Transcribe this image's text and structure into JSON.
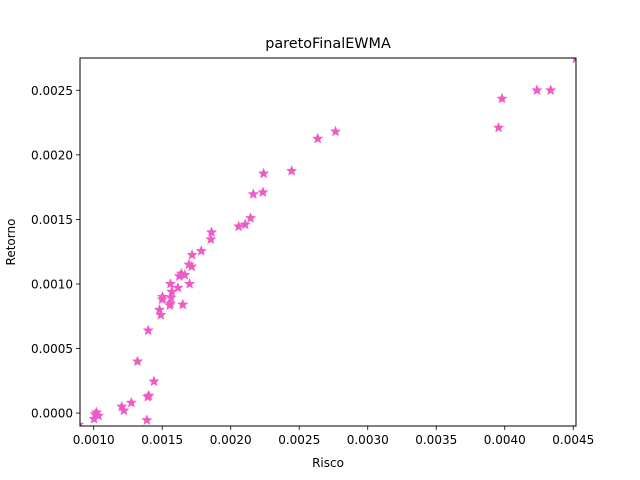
{
  "chart_data": {
    "type": "scatter",
    "title": "paretoFinalEWMA",
    "xlabel": "Risco",
    "ylabel": "Retorno",
    "xlim": [
      0.0009,
      0.00452
    ],
    "ylim": [
      -0.0001,
      0.00275
    ],
    "xticks": [
      {
        "value": 0.001,
        "label": "0.0010"
      },
      {
        "value": 0.0015,
        "label": "0.0015"
      },
      {
        "value": 0.002,
        "label": "0.0020"
      },
      {
        "value": 0.0025,
        "label": "0.0025"
      },
      {
        "value": 0.003,
        "label": "0.0030"
      },
      {
        "value": 0.0035,
        "label": "0.0035"
      },
      {
        "value": 0.004,
        "label": "0.0040"
      },
      {
        "value": 0.0045,
        "label": "0.0045"
      }
    ],
    "yticks": [
      {
        "value": 0.0,
        "label": "0.0000"
      },
      {
        "value": 0.0005,
        "label": "0.0005"
      },
      {
        "value": 0.001,
        "label": "0.0010"
      },
      {
        "value": 0.0015,
        "label": "0.0015"
      },
      {
        "value": 0.002,
        "label": "0.0020"
      },
      {
        "value": 0.0025,
        "label": "0.0025"
      }
    ],
    "marker": "star",
    "color": "#ef5bc6",
    "grid": false,
    "legend": "none",
    "points": [
      {
        "x": 0.00089,
        "y": -9e-05
      },
      {
        "x": 0.001003,
        "y": -4.5e-05
      },
      {
        "x": 0.00101,
        "y": -1e-05
      },
      {
        "x": 0.00102,
        "y": 5e-06
      },
      {
        "x": 0.001035,
        "y": -2e-05
      },
      {
        "x": 0.001205,
        "y": 5e-05
      },
      {
        "x": 0.00122,
        "y": 2e-05
      },
      {
        "x": 0.001275,
        "y": 8e-05
      },
      {
        "x": 0.00132,
        "y": 0.0004
      },
      {
        "x": 0.001388,
        "y": -5.5e-05
      },
      {
        "x": 0.001395,
        "y": 0.000125
      },
      {
        "x": 0.001402,
        "y": 0.000135
      },
      {
        "x": 0.001398,
        "y": 0.00064
      },
      {
        "x": 0.00144,
        "y": 0.000245
      },
      {
        "x": 0.00148,
        "y": 0.0008
      },
      {
        "x": 0.00149,
        "y": 0.00076
      },
      {
        "x": 0.0015,
        "y": 0.00088
      },
      {
        "x": 0.001502,
        "y": 0.0009
      },
      {
        "x": 0.001555,
        "y": 0.000835
      },
      {
        "x": 0.00156,
        "y": 0.00085
      },
      {
        "x": 0.001565,
        "y": 0.000895
      },
      {
        "x": 0.00157,
        "y": 0.00094
      },
      {
        "x": 0.00156,
        "y": 0.001
      },
      {
        "x": 0.001615,
        "y": 0.00097
      },
      {
        "x": 0.001625,
        "y": 0.00106
      },
      {
        "x": 0.00164,
        "y": 0.00108
      },
      {
        "x": 0.00165,
        "y": 0.00084
      },
      {
        "x": 0.001665,
        "y": 0.00107
      },
      {
        "x": 0.001695,
        "y": 0.00115
      },
      {
        "x": 0.0017,
        "y": 0.001
      },
      {
        "x": 0.001715,
        "y": 0.001135
      },
      {
        "x": 0.001718,
        "y": 0.001225
      },
      {
        "x": 0.001785,
        "y": 0.001255
      },
      {
        "x": 0.001855,
        "y": 0.001345
      },
      {
        "x": 0.00186,
        "y": 0.0014
      },
      {
        "x": 0.002058,
        "y": 0.001445
      },
      {
        "x": 0.002105,
        "y": 0.00146
      },
      {
        "x": 0.002145,
        "y": 0.00151
      },
      {
        "x": 0.002165,
        "y": 0.001695
      },
      {
        "x": 0.002235,
        "y": 0.00171
      },
      {
        "x": 0.00224,
        "y": 0.001855
      },
      {
        "x": 0.002445,
        "y": 0.001875
      },
      {
        "x": 0.002635,
        "y": 0.002125
      },
      {
        "x": 0.002765,
        "y": 0.00218
      },
      {
        "x": 0.003955,
        "y": 0.00221
      },
      {
        "x": 0.00398,
        "y": 0.002435
      },
      {
        "x": 0.004235,
        "y": 0.0025
      },
      {
        "x": 0.004335,
        "y": 0.0025
      },
      {
        "x": 0.00452,
        "y": 0.002745
      }
    ]
  }
}
